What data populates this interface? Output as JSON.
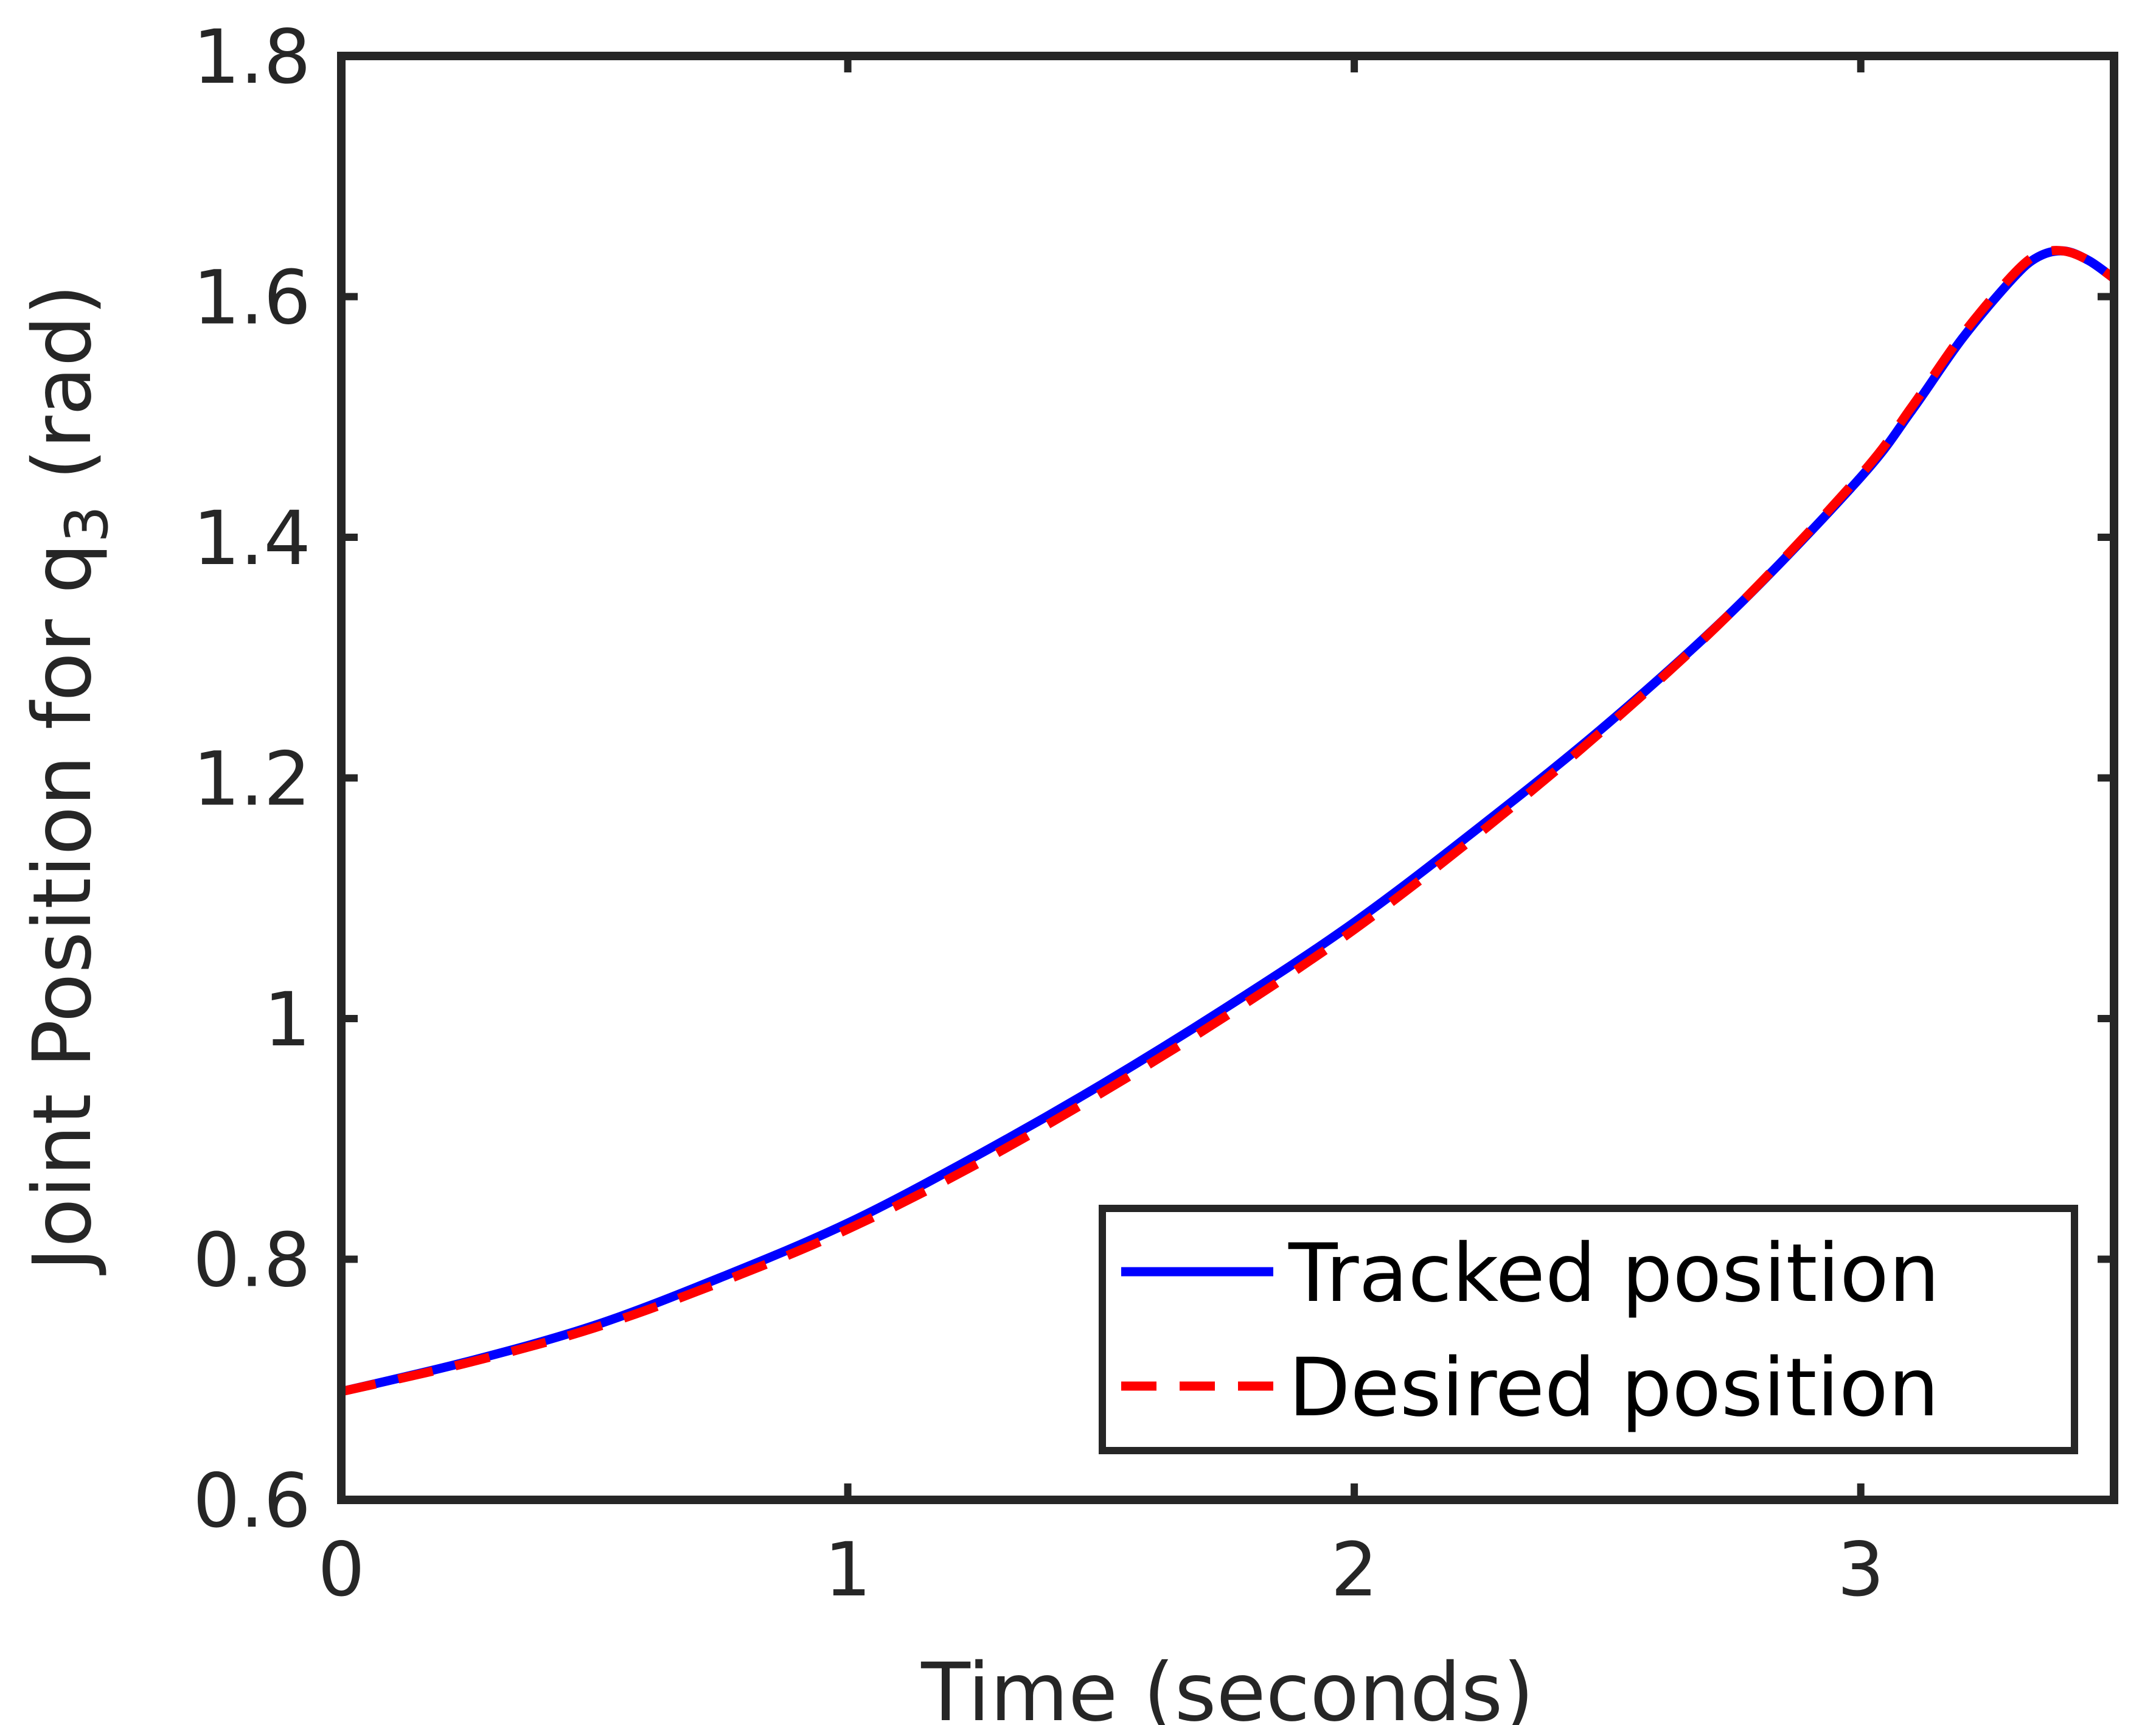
{
  "chart_data": {
    "type": "line",
    "xlabel": "Time (seconds)",
    "ylabel": {
      "main": "Joint Position for q",
      "subscript": "3",
      "unit": " (rad)"
    },
    "xlim": [
      0,
      3.5
    ],
    "ylim": [
      0.6,
      1.8
    ],
    "xticks": [
      0,
      1,
      2,
      3
    ],
    "yticks": [
      0.6,
      0.8,
      1,
      1.2,
      1.4,
      1.6,
      1.8
    ],
    "x_tick_labels": [
      "0",
      "1",
      "2",
      "3"
    ],
    "y_tick_labels": [
      "0.6",
      "0.8",
      "1",
      "1.2",
      "1.4",
      "1.6",
      "1.8"
    ],
    "grid": false,
    "legend_position": "bottom-right",
    "series": [
      {
        "name": "Tracked position",
        "style": "solid",
        "color": "#0000FF",
        "x": [
          0,
          0.25,
          0.5,
          0.75,
          1.0,
          1.25,
          1.5,
          1.75,
          2.0,
          2.25,
          2.5,
          2.75,
          3.0,
          3.1,
          3.2,
          3.3,
          3.35,
          3.4,
          3.45,
          3.5
        ],
        "y": [
          0.69,
          0.715,
          0.745,
          0.785,
          0.83,
          0.885,
          0.945,
          1.01,
          1.08,
          1.16,
          1.245,
          1.34,
          1.45,
          1.505,
          1.565,
          1.615,
          1.633,
          1.638,
          1.63,
          1.615
        ]
      },
      {
        "name": "Desired position",
        "style": "dashed",
        "color": "#FF0000",
        "x": [
          0,
          0.25,
          0.5,
          0.75,
          1.0,
          1.25,
          1.5,
          1.75,
          2.0,
          2.25,
          2.5,
          2.75,
          3.0,
          3.1,
          3.2,
          3.3,
          3.35,
          3.4,
          3.45,
          3.5
        ],
        "y": [
          0.69,
          0.714,
          0.743,
          0.781,
          0.825,
          0.878,
          0.938,
          1.003,
          1.074,
          1.155,
          1.243,
          1.34,
          1.452,
          1.508,
          1.568,
          1.618,
          1.635,
          1.638,
          1.63,
          1.615
        ]
      }
    ]
  }
}
